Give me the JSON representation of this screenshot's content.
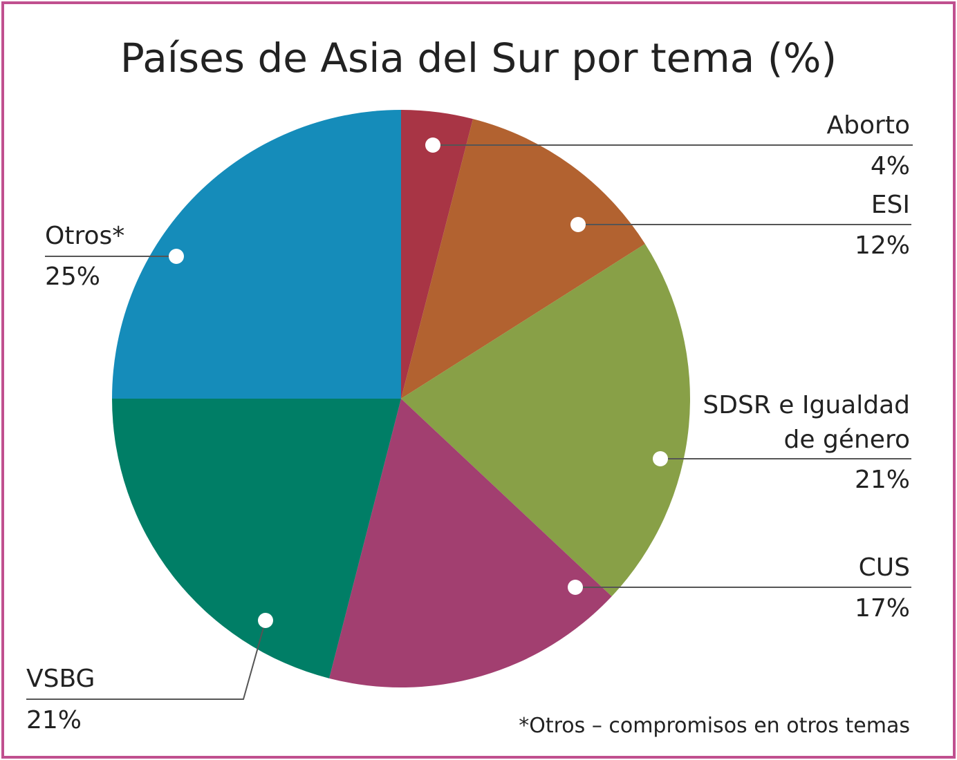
{
  "chart_data": {
    "type": "pie",
    "title": "Países de Asia del Sur por tema (%)",
    "categories": [
      "Aborto",
      "ESI",
      "SDSR e Igualdad de género",
      "CUS",
      "VSBG",
      "Otros*"
    ],
    "values": [
      4,
      12,
      21,
      17,
      21,
      25
    ],
    "value_labels": [
      "4%",
      "12%",
      "21%",
      "17%",
      "21%",
      "25%"
    ],
    "colors": [
      "#a83545",
      "#b26230",
      "#88a047",
      "#a23f70",
      "#007e66",
      "#158cba"
    ],
    "footnote": "*Otros – compromisos en otros temas"
  }
}
